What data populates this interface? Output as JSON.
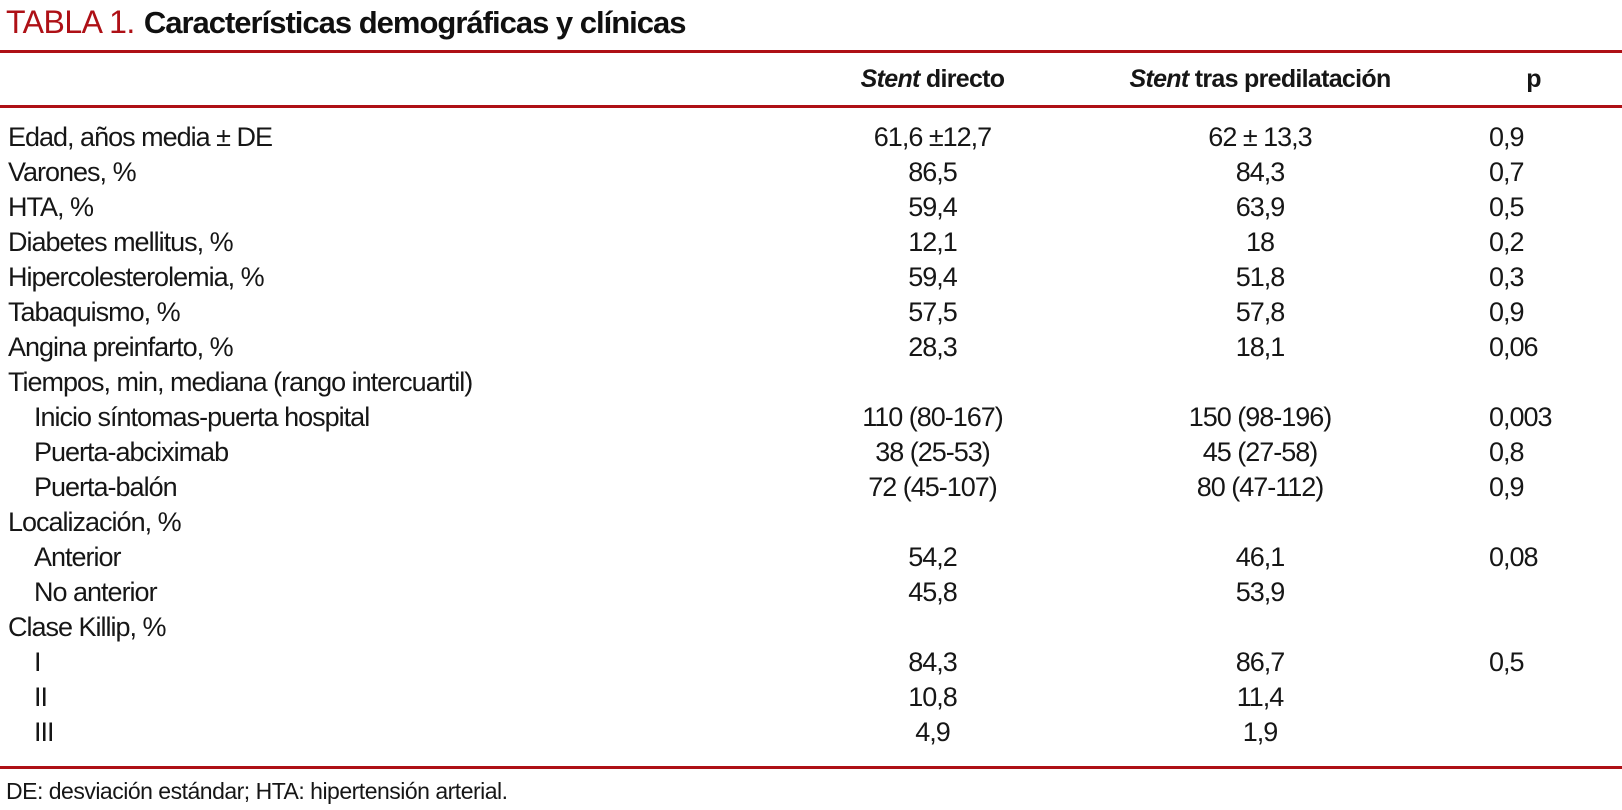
{
  "title": {
    "label": "TABLA 1.",
    "text": "Características demográficas y clínicas"
  },
  "colors": {
    "accent_red": "#AE1016",
    "text": "#161616"
  },
  "table": {
    "columns": {
      "stent_directo": {
        "italic": "Stent",
        "rest": " directo"
      },
      "stent_predilatacion": {
        "italic": "Stent",
        "rest": " tras predilatación"
      },
      "p": "p"
    },
    "rows": [
      {
        "label": "Edad, años media ± DE",
        "stent_directo": "61,6 ±12,7",
        "stent_predilatacion": "62 ± 13,3",
        "p": "0,9"
      },
      {
        "label": "Varones, %",
        "stent_directo": "86,5",
        "stent_predilatacion": "84,3",
        "p": "0,7"
      },
      {
        "label": "HTA, %",
        "stent_directo": "59,4",
        "stent_predilatacion": "63,9",
        "p": "0,5"
      },
      {
        "label": "Diabetes mellitus, %",
        "stent_directo": "12,1",
        "stent_predilatacion": "18",
        "p": "0,2"
      },
      {
        "label": "Hipercolesterolemia, %",
        "stent_directo": "59,4",
        "stent_predilatacion": "51,8",
        "p": "0,3"
      },
      {
        "label": "Tabaquismo, %",
        "stent_directo": "57,5",
        "stent_predilatacion": "57,8",
        "p": "0,9"
      },
      {
        "label": "Angina preinfarto, %",
        "stent_directo": "28,3",
        "stent_predilatacion": "18,1",
        "p": "0,06"
      },
      {
        "label": "Tiempos, min, mediana (rango intercuartil)",
        "stent_directo": "",
        "stent_predilatacion": "",
        "p": ""
      },
      {
        "label": "Inicio síntomas-puerta hospital",
        "stent_directo": "110 (80-167)",
        "stent_predilatacion": "150 (98-196)",
        "p": "0,003"
      },
      {
        "label": "Puerta-abciximab",
        "stent_directo": "38 (25-53)",
        "stent_predilatacion": "45 (27-58)",
        "p": "0,8"
      },
      {
        "label": "Puerta-balón",
        "stent_directo": "72 (45-107)",
        "stent_predilatacion": "80 (47-112)",
        "p": "0,9"
      },
      {
        "label": "Localización, %",
        "stent_directo": "",
        "stent_predilatacion": "",
        "p": ""
      },
      {
        "label": "Anterior",
        "stent_directo": "54,2",
        "stent_predilatacion": "46,1",
        "p": "0,08"
      },
      {
        "label": "No anterior",
        "stent_directo": "45,8",
        "stent_predilatacion": "53,9",
        "p": ""
      },
      {
        "label": "Clase Killip, %",
        "stent_directo": "",
        "stent_predilatacion": "",
        "p": ""
      },
      {
        "label": "I",
        "stent_directo": "84,3",
        "stent_predilatacion": "86,7",
        "p": "0,5"
      },
      {
        "label": "II",
        "stent_directo": "10,8",
        "stent_predilatacion": "11,4",
        "p": ""
      },
      {
        "label": "III",
        "stent_directo": "4,9",
        "stent_predilatacion": "1,9",
        "p": ""
      }
    ]
  },
  "footnote": "DE: desviación estándar; HTA: hipertensión arterial."
}
